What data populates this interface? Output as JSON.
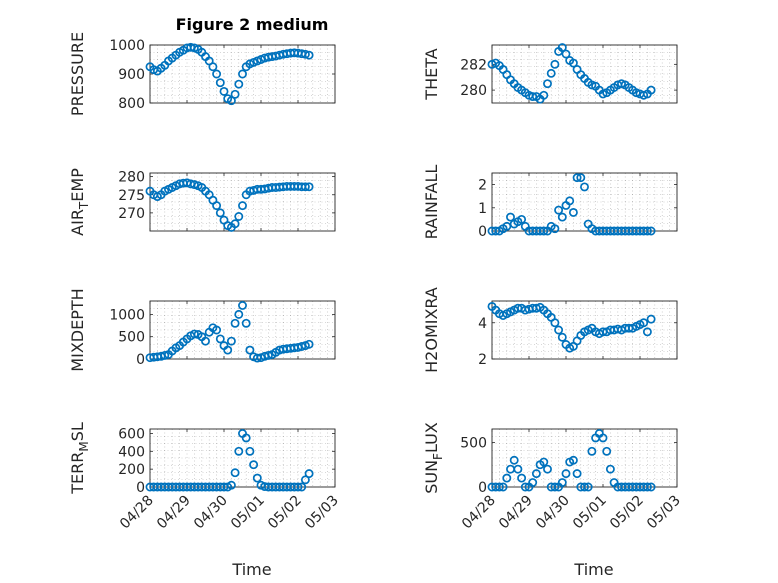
{
  "figure": {
    "title": "Figure 2 medium"
  },
  "colors": {
    "marker": "#0072BD",
    "axis": "#262626"
  },
  "chart_data": [
    {
      "type": "scatter",
      "ylabel": "PRESSURE",
      "ylim": [
        800,
        1000
      ],
      "yticks": [
        800,
        900,
        1000
      ],
      "xlim": [
        0,
        5
      ],
      "grid": "on",
      "series": [
        {
          "x": [
            0,
            0.1,
            0.2,
            0.3,
            0.4,
            0.5,
            0.6,
            0.7,
            0.8,
            0.9,
            1.0,
            1.1,
            1.2,
            1.3,
            1.4,
            1.5,
            1.6,
            1.7,
            1.8,
            1.9,
            2.0,
            2.1,
            2.2,
            2.3,
            2.4,
            2.5,
            2.6,
            2.7,
            2.8,
            2.9,
            3.0,
            3.1,
            3.2,
            3.3,
            3.4,
            3.5,
            3.6,
            3.7,
            3.8,
            3.9,
            4.0,
            4.1,
            4.2,
            4.3
          ],
          "values": [
            925,
            915,
            910,
            920,
            930,
            945,
            955,
            965,
            975,
            982,
            990,
            992,
            990,
            985,
            975,
            960,
            945,
            925,
            900,
            870,
            840,
            815,
            808,
            830,
            865,
            900,
            925,
            935,
            940,
            945,
            950,
            955,
            958,
            960,
            962,
            965,
            968,
            970,
            972,
            973,
            972,
            970,
            968,
            965
          ]
        }
      ]
    },
    {
      "type": "scatter",
      "ylabel": "THETA",
      "ylim": [
        279,
        283.5
      ],
      "yticks": [
        280,
        282
      ],
      "xlim": [
        0,
        5
      ],
      "grid": "on",
      "series": [
        {
          "x": [
            0,
            0.1,
            0.2,
            0.3,
            0.4,
            0.5,
            0.6,
            0.7,
            0.8,
            0.9,
            1.0,
            1.1,
            1.2,
            1.3,
            1.4,
            1.5,
            1.6,
            1.7,
            1.8,
            1.9,
            2.0,
            2.1,
            2.2,
            2.3,
            2.4,
            2.5,
            2.6,
            2.7,
            2.8,
            2.9,
            3.0,
            3.1,
            3.2,
            3.3,
            3.4,
            3.5,
            3.6,
            3.7,
            3.8,
            3.9,
            4.0,
            4.1,
            4.2,
            4.3
          ],
          "values": [
            282,
            282.1,
            281.9,
            281.6,
            281.2,
            280.8,
            280.5,
            280.2,
            280.0,
            279.8,
            279.6,
            279.5,
            279.5,
            279.3,
            279.6,
            280.5,
            281.3,
            282,
            283,
            283.3,
            282.8,
            282.3,
            282.1,
            281.6,
            281.2,
            280.9,
            280.6,
            280.4,
            280.3,
            280.0,
            279.7,
            279.8,
            280.0,
            280.2,
            280.4,
            280.5,
            280.4,
            280.2,
            280.0,
            279.8,
            279.7,
            279.6,
            279.7,
            280.0
          ]
        }
      ]
    },
    {
      "type": "scatter",
      "ylabel": "AIR_TEMP",
      "ylim": [
        265,
        281
      ],
      "yticks": [
        270,
        275,
        280
      ],
      "xlim": [
        0,
        5
      ],
      "grid": "on",
      "series": [
        {
          "x": [
            0,
            0.1,
            0.2,
            0.3,
            0.4,
            0.5,
            0.6,
            0.7,
            0.8,
            0.9,
            1.0,
            1.1,
            1.2,
            1.3,
            1.4,
            1.5,
            1.6,
            1.7,
            1.8,
            1.9,
            2.0,
            2.1,
            2.2,
            2.3,
            2.4,
            2.5,
            2.6,
            2.7,
            2.8,
            2.9,
            3.0,
            3.1,
            3.2,
            3.3,
            3.4,
            3.5,
            3.6,
            3.7,
            3.8,
            3.9,
            4.0,
            4.1,
            4.2,
            4.3
          ],
          "values": [
            276,
            275,
            274.5,
            275,
            276,
            276.5,
            277,
            277.5,
            278,
            278.2,
            278.3,
            278,
            277.8,
            277.5,
            277,
            276,
            275,
            273.5,
            272,
            270,
            268,
            266.5,
            266,
            267,
            269,
            272,
            275,
            276,
            276.2,
            276.5,
            276.5,
            276.6,
            276.8,
            277,
            277,
            277.1,
            277.2,
            277.3,
            277.3,
            277.3,
            277.3,
            277.2,
            277.2,
            277.2
          ]
        }
      ]
    },
    {
      "type": "scatter",
      "ylabel": "RAINFALL",
      "ylim": [
        0,
        2.5
      ],
      "yticks": [
        0,
        1,
        2
      ],
      "xlim": [
        0,
        5
      ],
      "grid": "on",
      "series": [
        {
          "x": [
            0,
            0.1,
            0.2,
            0.3,
            0.4,
            0.5,
            0.6,
            0.7,
            0.8,
            0.9,
            1.0,
            1.1,
            1.2,
            1.3,
            1.4,
            1.5,
            1.6,
            1.7,
            1.8,
            1.9,
            2.0,
            2.1,
            2.2,
            2.3,
            2.4,
            2.5,
            2.6,
            2.7,
            2.8,
            2.9,
            3.0,
            3.1,
            3.2,
            3.3,
            3.4,
            3.5,
            3.6,
            3.7,
            3.8,
            3.9,
            4.0,
            4.1,
            4.2,
            4.3
          ],
          "values": [
            0,
            0,
            0,
            0.1,
            0.2,
            0.6,
            0.3,
            0.4,
            0.5,
            0.2,
            0,
            0,
            0,
            0,
            0,
            0,
            0.2,
            0.1,
            0.9,
            0.6,
            1.1,
            1.3,
            0.8,
            2.3,
            2.3,
            1.9,
            0.3,
            0.1,
            0,
            0,
            0,
            0,
            0,
            0,
            0,
            0,
            0,
            0,
            0,
            0,
            0,
            0,
            0,
            0
          ]
        }
      ]
    },
    {
      "type": "scatter",
      "ylabel": "MIXDEPTH",
      "ylim": [
        0,
        1300
      ],
      "yticks": [
        0,
        500,
        1000
      ],
      "xlim": [
        0,
        5
      ],
      "grid": "on",
      "series": [
        {
          "x": [
            0,
            0.1,
            0.2,
            0.3,
            0.4,
            0.5,
            0.6,
            0.7,
            0.8,
            0.9,
            1.0,
            1.1,
            1.2,
            1.3,
            1.4,
            1.5,
            1.6,
            1.7,
            1.8,
            1.9,
            2.0,
            2.1,
            2.2,
            2.3,
            2.4,
            2.5,
            2.6,
            2.7,
            2.8,
            2.9,
            3.0,
            3.1,
            3.2,
            3.3,
            3.4,
            3.5,
            3.6,
            3.7,
            3.8,
            3.9,
            4.0,
            4.1,
            4.2,
            4.3
          ],
          "values": [
            30,
            40,
            50,
            60,
            80,
            100,
            180,
            250,
            300,
            380,
            450,
            520,
            560,
            550,
            500,
            400,
            600,
            700,
            650,
            450,
            300,
            200,
            400,
            800,
            1000,
            1200,
            800,
            200,
            50,
            20,
            30,
            60,
            80,
            100,
            150,
            200,
            220,
            230,
            240,
            250,
            260,
            280,
            300,
            330
          ]
        }
      ]
    },
    {
      "type": "scatter",
      "ylabel": "H2OMIXRA",
      "ylim": [
        2,
        5.2
      ],
      "yticks": [
        2,
        4
      ],
      "xlim": [
        0,
        5
      ],
      "grid": "on",
      "series": [
        {
          "x": [
            0,
            0.1,
            0.2,
            0.3,
            0.4,
            0.5,
            0.6,
            0.7,
            0.8,
            0.9,
            1.0,
            1.1,
            1.2,
            1.3,
            1.4,
            1.5,
            1.6,
            1.7,
            1.8,
            1.9,
            2.0,
            2.1,
            2.2,
            2.3,
            2.4,
            2.5,
            2.6,
            2.7,
            2.8,
            2.9,
            3.0,
            3.1,
            3.2,
            3.3,
            3.4,
            3.5,
            3.6,
            3.7,
            3.8,
            3.9,
            4.0,
            4.1,
            4.2,
            4.3
          ],
          "values": [
            4.9,
            4.7,
            4.5,
            4.4,
            4.5,
            4.6,
            4.7,
            4.8,
            4.8,
            4.7,
            4.75,
            4.8,
            4.8,
            4.85,
            4.7,
            4.5,
            4.3,
            4.0,
            3.6,
            3.2,
            2.8,
            2.6,
            2.7,
            3.0,
            3.3,
            3.5,
            3.6,
            3.7,
            3.5,
            3.4,
            3.5,
            3.5,
            3.6,
            3.6,
            3.65,
            3.6,
            3.7,
            3.7,
            3.7,
            3.8,
            3.9,
            4.0,
            3.5,
            4.2
          ]
        }
      ]
    },
    {
      "type": "scatter",
      "ylabel": "TERR_MSL",
      "ylim": [
        0,
        650
      ],
      "yticks": [
        0,
        200,
        400,
        600
      ],
      "xlim": [
        0,
        5
      ],
      "grid": "on",
      "series": [
        {
          "x": [
            0,
            0.1,
            0.2,
            0.3,
            0.4,
            0.5,
            0.6,
            0.7,
            0.8,
            0.9,
            1.0,
            1.1,
            1.2,
            1.3,
            1.4,
            1.5,
            1.6,
            1.7,
            1.8,
            1.9,
            2.0,
            2.1,
            2.2,
            2.3,
            2.4,
            2.5,
            2.6,
            2.7,
            2.8,
            2.9,
            3.0,
            3.1,
            3.2,
            3.3,
            3.4,
            3.5,
            3.6,
            3.7,
            3.8,
            3.9,
            4.0,
            4.1,
            4.2,
            4.3
          ],
          "values": [
            0,
            0,
            0,
            0,
            0,
            0,
            0,
            0,
            0,
            0,
            0,
            0,
            0,
            0,
            0,
            0,
            0,
            0,
            0,
            0,
            0,
            0,
            20,
            160,
            400,
            600,
            550,
            400,
            250,
            100,
            20,
            5,
            0,
            0,
            0,
            0,
            0,
            0,
            0,
            0,
            0,
            0,
            80,
            150
          ]
        }
      ]
    },
    {
      "type": "scatter",
      "ylabel": "SUN_FLUX",
      "ylim": [
        0,
        650
      ],
      "yticks": [
        0,
        500
      ],
      "xlim": [
        0,
        5
      ],
      "grid": "on",
      "series": [
        {
          "x": [
            0,
            0.1,
            0.2,
            0.3,
            0.4,
            0.5,
            0.6,
            0.7,
            0.8,
            0.9,
            1.0,
            1.1,
            1.2,
            1.3,
            1.4,
            1.5,
            1.6,
            1.7,
            1.8,
            1.9,
            2.0,
            2.1,
            2.2,
            2.3,
            2.4,
            2.5,
            2.6,
            2.7,
            2.8,
            2.9,
            3.0,
            3.1,
            3.2,
            3.3,
            3.4,
            3.5,
            3.6,
            3.7,
            3.8,
            3.9,
            4.0,
            4.1,
            4.2,
            4.3
          ],
          "values": [
            0,
            0,
            0,
            0,
            100,
            200,
            300,
            200,
            100,
            0,
            0,
            50,
            150,
            250,
            280,
            200,
            0,
            0,
            0,
            50,
            150,
            280,
            300,
            150,
            0,
            0,
            0,
            400,
            550,
            600,
            550,
            400,
            200,
            50,
            0,
            0,
            0,
            0,
            0,
            0,
            0,
            0,
            0,
            0
          ]
        }
      ]
    }
  ],
  "x_axis": {
    "label": "Time",
    "tick_labels": [
      "04/28",
      "04/29",
      "04/30",
      "05/01",
      "05/02",
      "05/03"
    ]
  }
}
